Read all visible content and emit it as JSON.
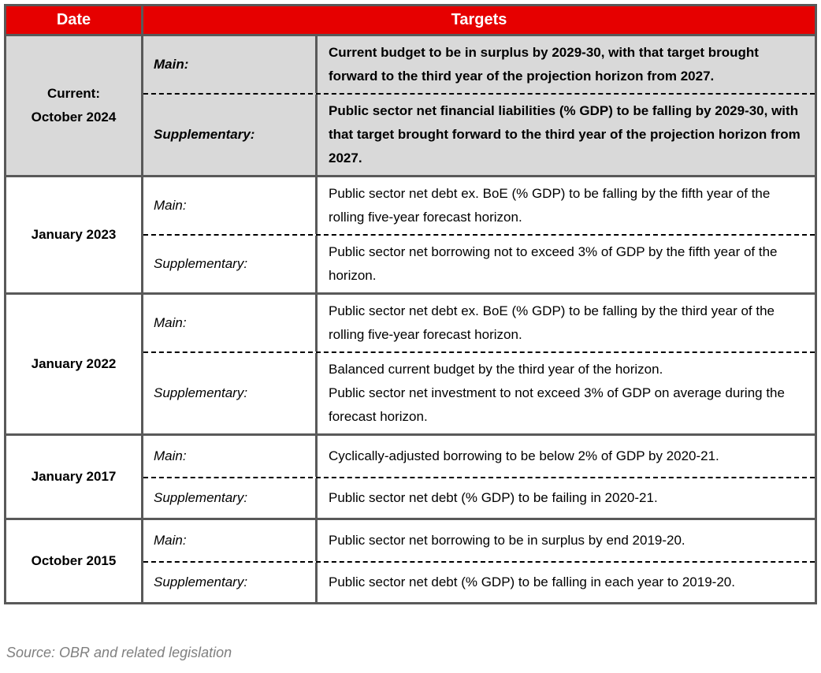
{
  "colors": {
    "header_bg": "#e60000",
    "header_text": "#ffffff",
    "highlight_row_bg": "#d9d9d9",
    "border": "#595959",
    "source_text": "#7f7f7f"
  },
  "table": {
    "header": {
      "date": "Date",
      "targets": "Targets"
    },
    "sections": [
      {
        "date": "Current:\nOctober 2024",
        "highlight": true,
        "rows": [
          {
            "label": "Main:",
            "text": "Current budget to be in surplus by 2029-30, with that target brought forward to the third year of the projection horizon from 2027."
          },
          {
            "label": "Supplementary:",
            "text": "Public sector net financial liabilities (% GDP) to be falling by 2029-30, with that target brought forward to the third year of the projection horizon from 2027."
          }
        ]
      },
      {
        "date": "January 2023",
        "highlight": false,
        "rows": [
          {
            "label": "Main:",
            "text": "Public sector net debt ex. BoE (% GDP) to be falling by the fifth year of the rolling five-year forecast horizon."
          },
          {
            "label": "Supplementary:",
            "text": "Public sector net borrowing not to exceed 3% of GDP by the fifth year of the horizon."
          }
        ]
      },
      {
        "date": "January 2022",
        "highlight": false,
        "rows": [
          {
            "label": "Main:",
            "text": "Public sector net debt ex. BoE (% GDP) to be falling by the third year of the rolling five-year forecast horizon."
          },
          {
            "label": "Supplementary:",
            "text": "Balanced current budget by the third year of the horizon.\nPublic sector net investment to not exceed 3% of GDP on average during the forecast horizon."
          }
        ]
      },
      {
        "date": "January 2017",
        "highlight": false,
        "rows": [
          {
            "label": "Main:",
            "text": "Cyclically-adjusted borrowing to be below 2% of GDP by 2020-21."
          },
          {
            "label": "Supplementary:",
            "text": "Public sector net debt (% GDP) to be failing in 2020-21."
          }
        ]
      },
      {
        "date": "October 2015",
        "highlight": false,
        "rows": [
          {
            "label": "Main:",
            "text": "Public sector net borrowing to be in surplus by end 2019-20."
          },
          {
            "label": "Supplementary:",
            "text": "Public sector net debt (% GDP) to be falling in each year to 2019-20."
          }
        ]
      }
    ]
  },
  "footer": {
    "source": "Source: OBR and related legislation"
  }
}
